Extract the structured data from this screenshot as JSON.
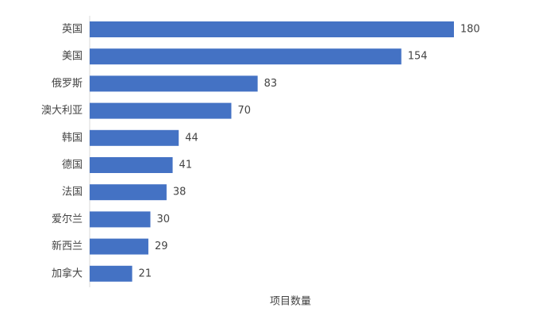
{
  "chart_data": {
    "type": "bar",
    "orientation": "horizontal",
    "categories": [
      "英国",
      "美国",
      "俄罗斯",
      "澳大利亚",
      "韩国",
      "德国",
      "法国",
      "爱尔兰",
      "新西兰",
      "加拿大"
    ],
    "values": [
      180,
      154,
      83,
      70,
      44,
      41,
      38,
      30,
      29,
      21
    ],
    "title": "",
    "xlabel": "项目数量",
    "ylabel": "",
    "xlim": [
      0,
      200
    ],
    "grid": false,
    "legend": "none",
    "data_labels": true
  },
  "colors": {
    "bar": "#4472C4",
    "text": "#444444",
    "axis": "#D9D9D9"
  }
}
